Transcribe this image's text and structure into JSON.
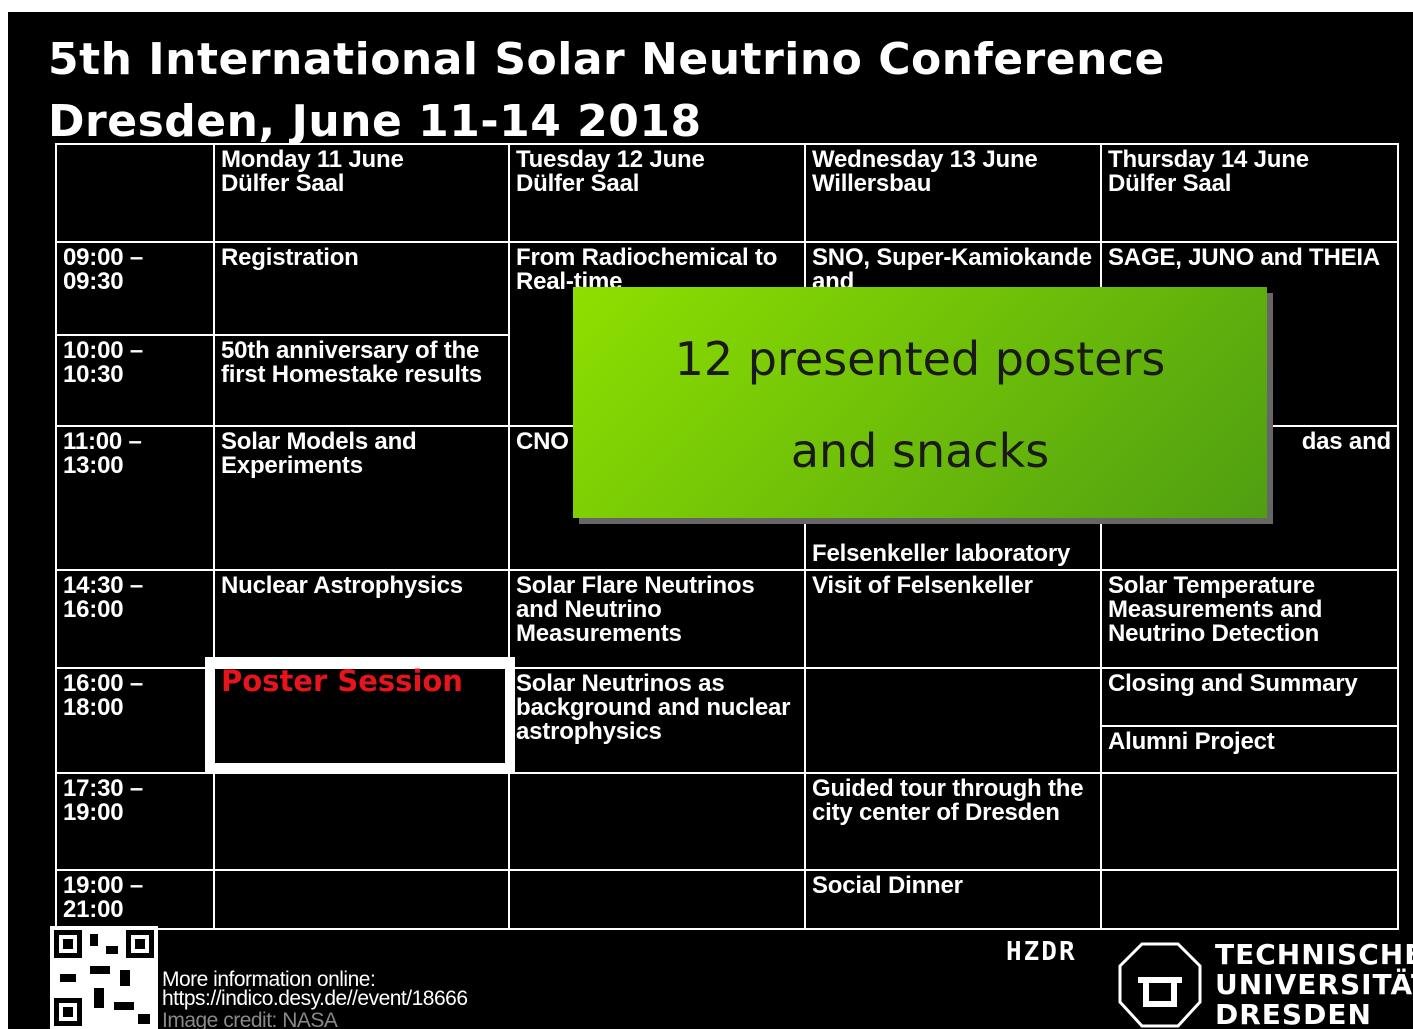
{
  "title": [
    "5th International Solar Neutrino Conference",
    "Dresden, June 11-14 2018"
  ],
  "table": {
    "header": [
      {
        "day": "Monday 11 June",
        "venue": "Dülfer Saal"
      },
      {
        "day": "Tuesday 12 June",
        "venue": "Dülfer Saal"
      },
      {
        "day": "Wednesday 13 June",
        "venue": "Willersbau"
      },
      {
        "day": "Thursday 14 June",
        "venue": "Dülfer Saal"
      }
    ],
    "slots": [
      {
        "from": "09:00 –",
        "to": "09:30"
      },
      {
        "from": "10:00 –",
        "to": "10:30"
      },
      {
        "from": "11:00 –",
        "to": "13:00"
      },
      {
        "from": "14:30 –",
        "to": "16:00"
      },
      {
        "from": "16:00 –",
        "to": "18:00"
      },
      {
        "from": "17:30 –",
        "to": "19:00"
      },
      {
        "from": "19:00 –",
        "to": "21:00"
      }
    ],
    "sessions": [
      "Registration",
      "From Radiochemical to Real-time",
      "SNO, Super-Kamiokande and",
      "Felsenkeller laboratory",
      "SAGE, JUNO and THEIA",
      "50th anniversary of the first Homestake results",
      "Solar Models and Experiments",
      "CNO",
      "das and",
      "Nuclear Astrophysics",
      "Solar Flare Neutrinos and Neutrino Measurements",
      "Visit of Felsenkeller",
      "Solar Temperature Measurements and Neutrino Detection",
      "Poster Session",
      "Solar Neutrinos as background and nuclear astrophysics",
      "Closing and Summary",
      "Alumni Project",
      "Guided tour through the city center of Dresden",
      "Social Dinner"
    ]
  },
  "overlay": [
    "12 presented posters",
    "and snacks"
  ],
  "footer": {
    "info": "More information online:",
    "url": "https://indico.desy.de//event/18666",
    "credit": "Image credit: NASA"
  },
  "logos": {
    "hzdr": "HZDR",
    "tu": [
      "TECHNISCHE",
      "UNIVERSITÄT",
      "DRESDEN"
    ]
  }
}
